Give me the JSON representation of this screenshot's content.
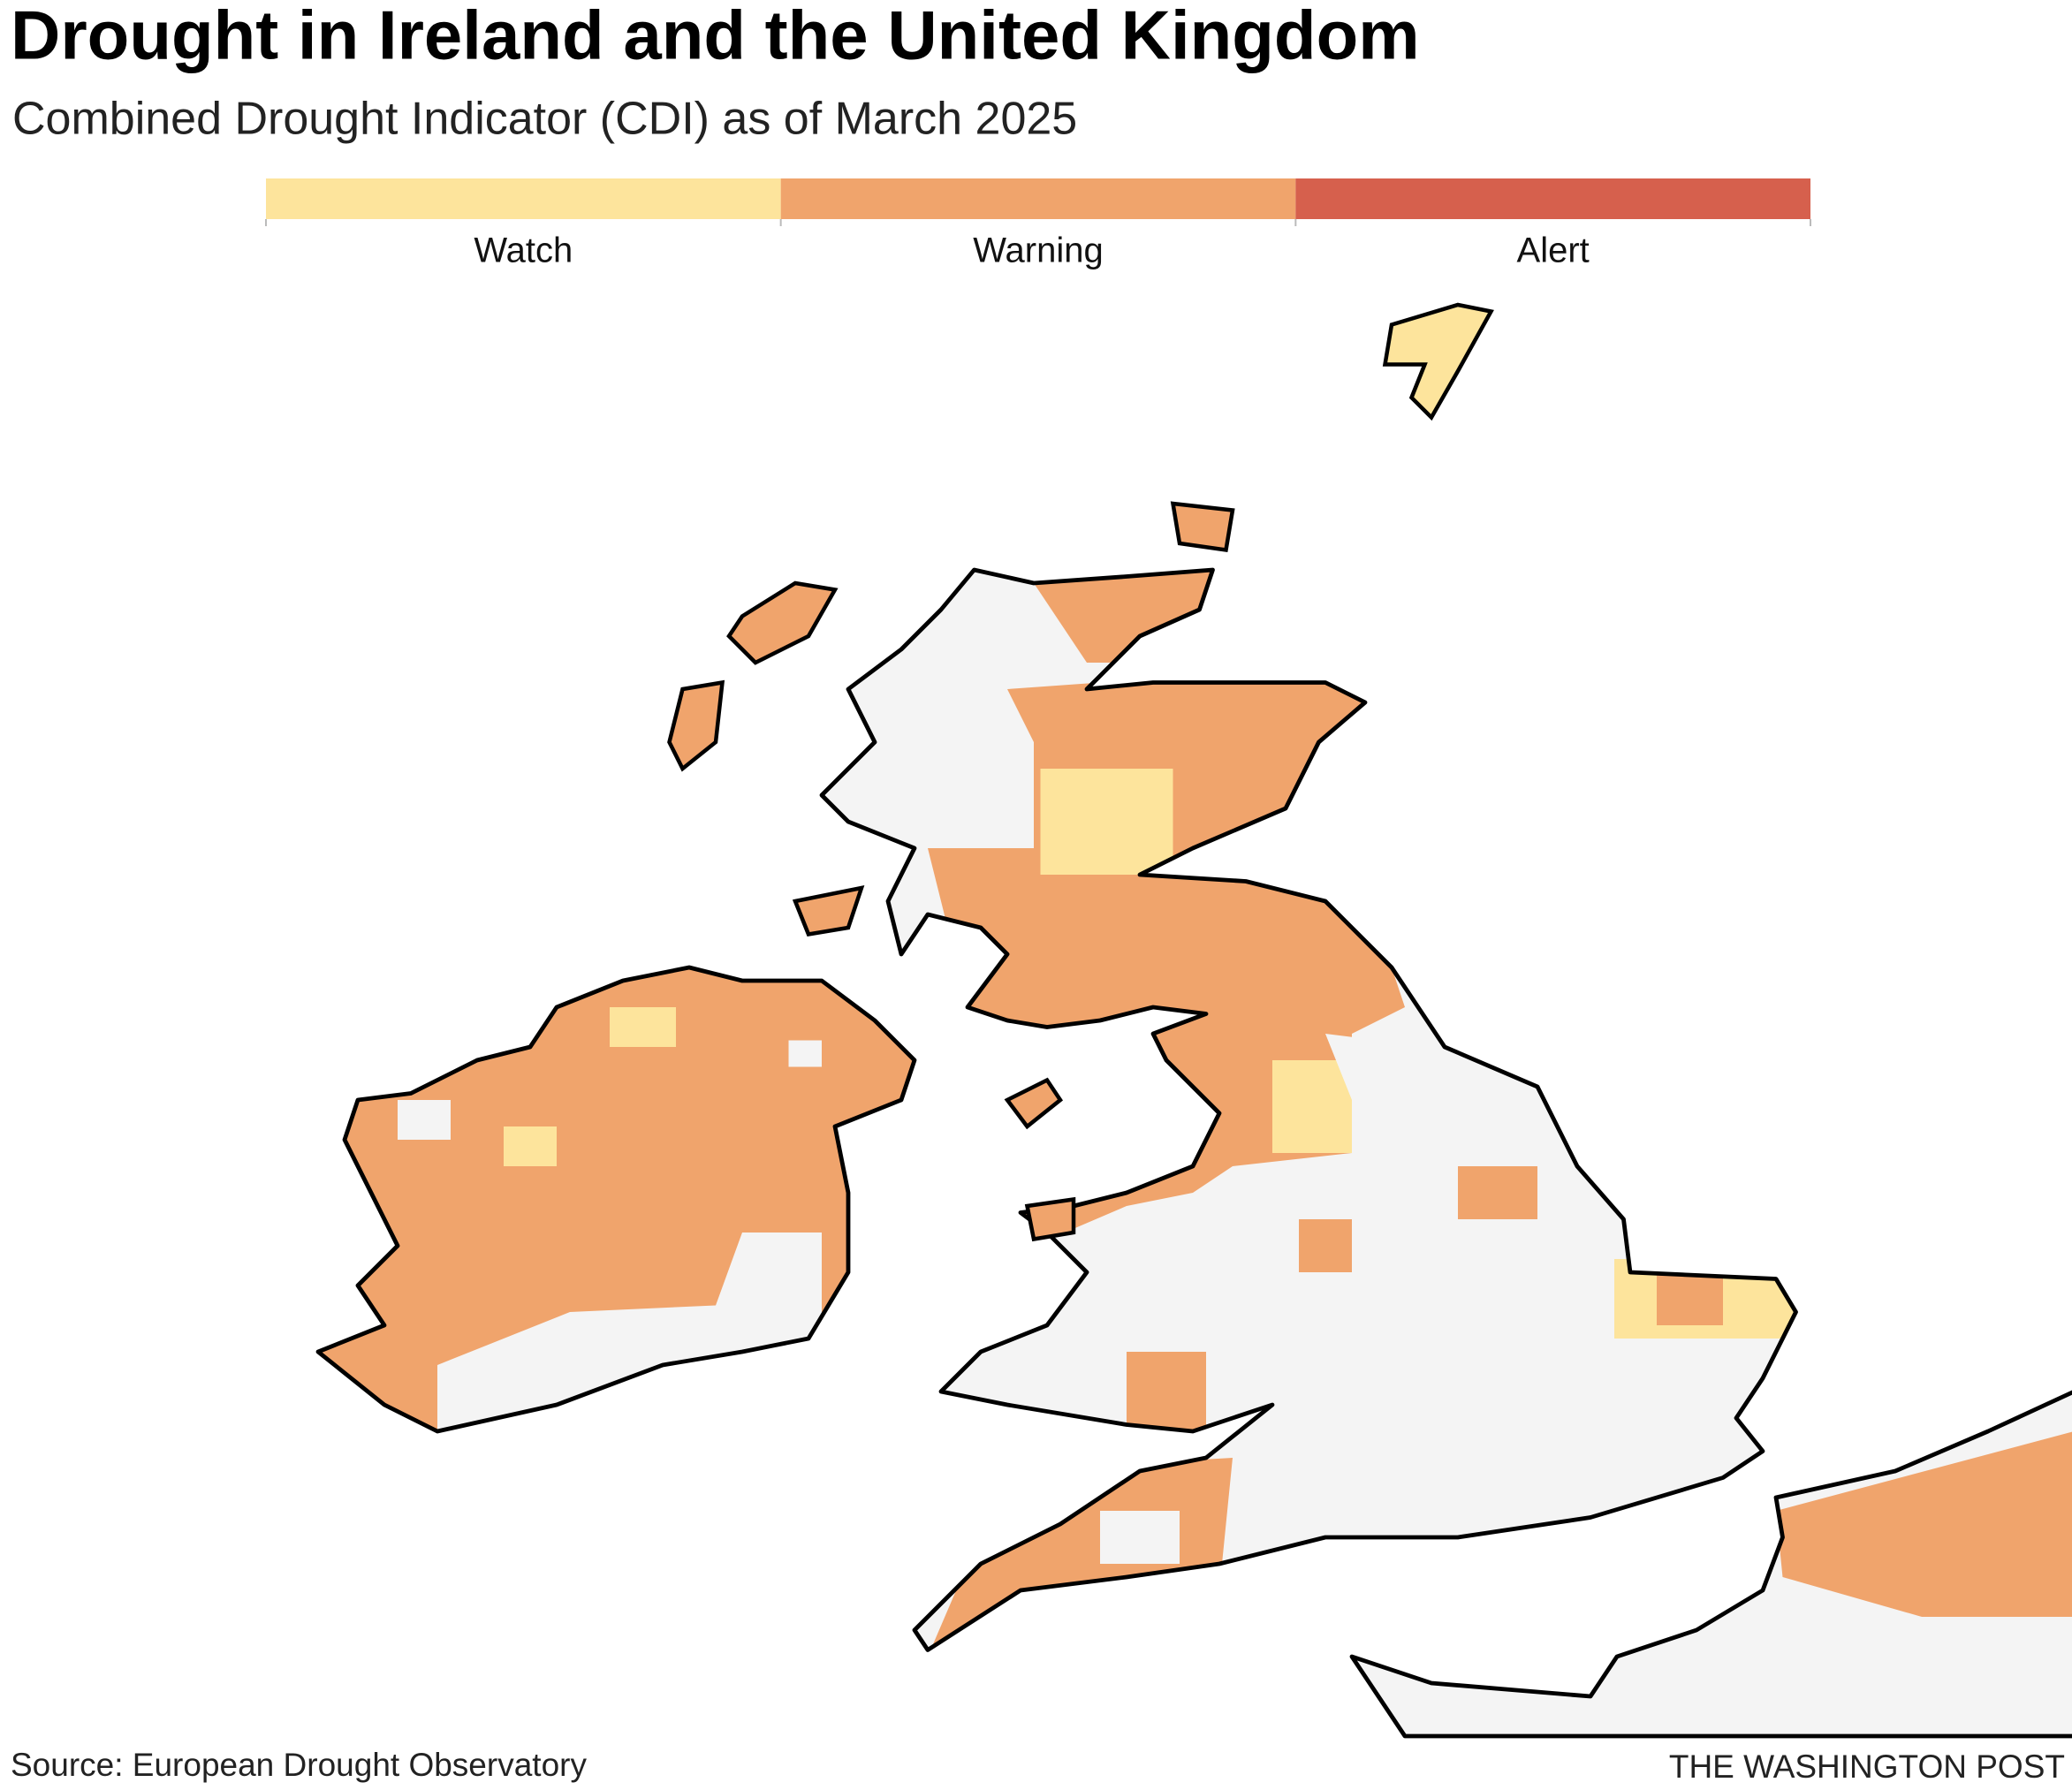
{
  "title": "Drought in Ireland and the United Kingdom",
  "subtitle": "Combined Drought Indicator (CDI) as of March 2025",
  "legend": [
    {
      "name": "Watch",
      "color": "#fde49c"
    },
    {
      "name": "Warning",
      "color": "#f0a46c"
    },
    {
      "name": "Alert",
      "color": "#d6604d"
    }
  ],
  "source": "Source: European Drought Observatory",
  "credit": "THE WASHINGTON POST"
}
